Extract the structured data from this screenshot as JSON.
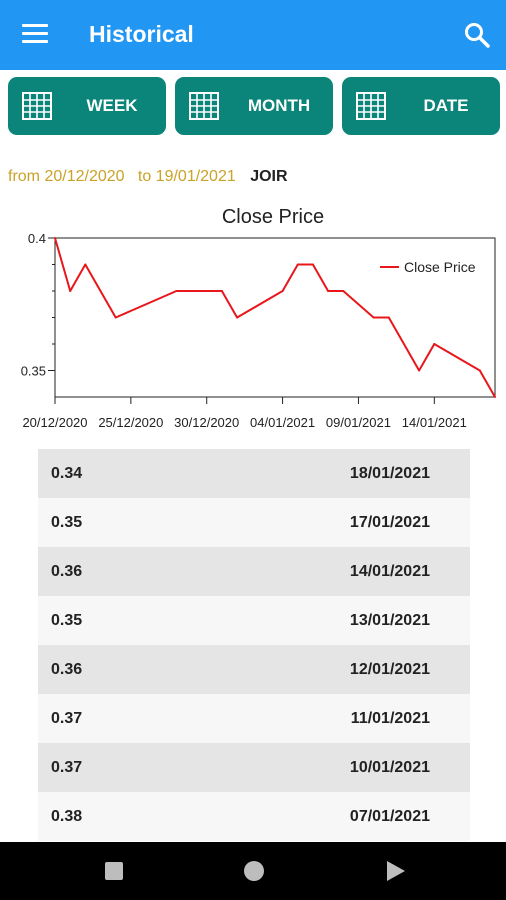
{
  "appbar": {
    "title": "Historical",
    "menu_icon": "menu-icon",
    "search_icon": "search-icon",
    "color": "#2196F3"
  },
  "filters": [
    {
      "label": "WEEK",
      "icon": "calendar-icon"
    },
    {
      "label": "MONTH",
      "icon": "calendar-icon"
    },
    {
      "label": "DATE",
      "icon": "calendar-icon"
    }
  ],
  "range": {
    "from_label": "from",
    "from": "20/12/2020",
    "to_label": "to",
    "to": "19/01/2021",
    "symbol": "JOIR"
  },
  "chart_data": {
    "type": "line",
    "title": "Close Price",
    "xlabel": "",
    "ylabel": "",
    "ylim": [
      0.34,
      0.4
    ],
    "yticks": [
      0.35,
      0.4
    ],
    "ytick_labels": [
      "0.35",
      "0.4"
    ],
    "xtick_labels": [
      "20/12/2020",
      "25/12/2020",
      "30/12/2020",
      "04/01/2021",
      "09/01/2021",
      "14/01/2021"
    ],
    "grid": false,
    "legend": "top-right",
    "series": [
      {
        "name": "Close Price",
        "color": "#E8171B",
        "points": [
          [
            "20/12/2020",
            0.4
          ],
          [
            "21/12/2020",
            0.38
          ],
          [
            "22/12/2020",
            0.39
          ],
          [
            "24/12/2020",
            0.37
          ],
          [
            "28/12/2020",
            0.38
          ],
          [
            "31/12/2020",
            0.38
          ],
          [
            "01/01/2021",
            0.37
          ],
          [
            "04/01/2021",
            0.38
          ],
          [
            "05/01/2021",
            0.39
          ],
          [
            "06/01/2021",
            0.39
          ],
          [
            "07/01/2021",
            0.38
          ],
          [
            "08/01/2021",
            0.38
          ],
          [
            "10/01/2021",
            0.37
          ],
          [
            "11/01/2021",
            0.37
          ],
          [
            "13/01/2021",
            0.35
          ],
          [
            "14/01/2021",
            0.36
          ],
          [
            "17/01/2021",
            0.35
          ],
          [
            "18/01/2021",
            0.34
          ]
        ]
      }
    ]
  },
  "rows": [
    {
      "price": "0.34",
      "date": "18/01/2021"
    },
    {
      "price": "0.35",
      "date": "17/01/2021"
    },
    {
      "price": "0.36",
      "date": "14/01/2021"
    },
    {
      "price": "0.35",
      "date": "13/01/2021"
    },
    {
      "price": "0.36",
      "date": "12/01/2021"
    },
    {
      "price": "0.37",
      "date": "11/01/2021"
    },
    {
      "price": "0.37",
      "date": "10/01/2021"
    },
    {
      "price": "0.38",
      "date": "07/01/2021"
    }
  ],
  "navbar": {
    "icons": [
      "recents-square-icon",
      "home-circle-icon",
      "back-triangle-icon"
    ]
  }
}
